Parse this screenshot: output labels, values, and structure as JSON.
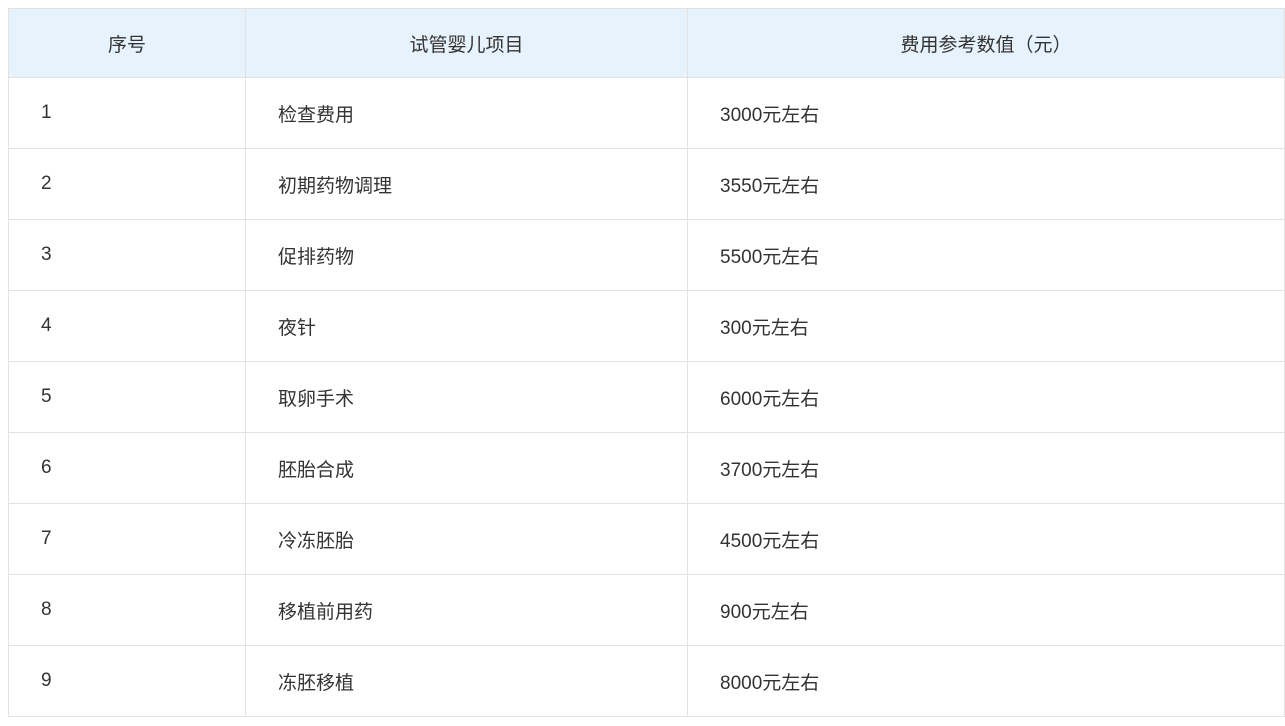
{
  "colors": {
    "header_background": "#e7f3fc",
    "border": "#e2e2e2",
    "text": "#333333",
    "page_background": "#ffffff"
  },
  "chart_data": {
    "type": "table",
    "title": "",
    "columns": [
      "序号",
      "试管婴儿项目",
      "费用参考数值（元）"
    ],
    "rows": [
      [
        "1",
        "检查费用",
        "3000元左右"
      ],
      [
        "2",
        "初期药物调理",
        "3550元左右"
      ],
      [
        "3",
        "促排药物",
        "5500元左右"
      ],
      [
        "4",
        "夜针",
        "300元左右"
      ],
      [
        "5",
        "取卵手术",
        "6000元左右"
      ],
      [
        "6",
        "胚胎合成",
        "3700元左右"
      ],
      [
        "7",
        "冷冻胚胎",
        "4500元左右"
      ],
      [
        "8",
        "移植前用药",
        "900元左右"
      ],
      [
        "9",
        "冻胚移植",
        "8000元左右"
      ]
    ],
    "layout": {
      "header_align": "center",
      "cell_align": "left",
      "grid": true
    }
  }
}
